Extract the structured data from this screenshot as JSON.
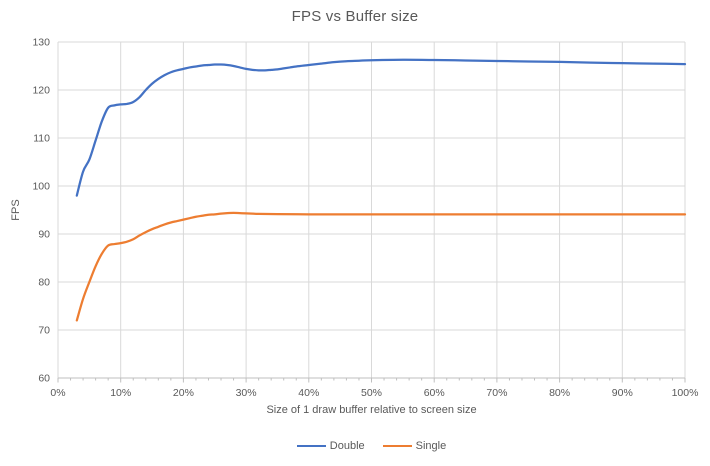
{
  "title": "FPS vs Buffer size",
  "colors": {
    "series_double": "#4472C4",
    "series_single": "#ED7D31",
    "text": "#595959",
    "gridline": "#D9D9D9",
    "axis_line": "#BFBFBF",
    "background": "#FFFFFF"
  },
  "chart_data": {
    "type": "line",
    "title": "FPS vs Buffer size",
    "xlabel": "Size of 1 draw buffer relative to screen size",
    "ylabel": "FPS",
    "xlim": [
      0,
      100
    ],
    "ylim": [
      60,
      130
    ],
    "x_ticks": [
      "0%",
      "10%",
      "20%",
      "30%",
      "40%",
      "50%",
      "60%",
      "70%",
      "80%",
      "90%",
      "100%"
    ],
    "x_tick_values": [
      0,
      10,
      20,
      30,
      40,
      50,
      60,
      70,
      80,
      90,
      100
    ],
    "x_minor_tick_step": 2,
    "y_ticks": [
      60,
      70,
      80,
      90,
      100,
      110,
      120,
      130
    ],
    "grid": true,
    "legend_position": "bottom",
    "series": [
      {
        "name": "Double",
        "color": "#4472C4",
        "points": [
          [
            3,
            98
          ],
          [
            4,
            103
          ],
          [
            5,
            105.5
          ],
          [
            6,
            109.5
          ],
          [
            7,
            113.5
          ],
          [
            8,
            116.3
          ],
          [
            9,
            116.8
          ],
          [
            10,
            117
          ],
          [
            11,
            117.1
          ],
          [
            12,
            117.5
          ],
          [
            13,
            118.5
          ],
          [
            14,
            120
          ],
          [
            15,
            121.3
          ],
          [
            16,
            122.3
          ],
          [
            17,
            123.1
          ],
          [
            18,
            123.7
          ],
          [
            19,
            124.1
          ],
          [
            20,
            124.4
          ],
          [
            21,
            124.7
          ],
          [
            22,
            124.9
          ],
          [
            23,
            125.1
          ],
          [
            24,
            125.2
          ],
          [
            25,
            125.3
          ],
          [
            26,
            125.3
          ],
          [
            27,
            125.2
          ],
          [
            28,
            125
          ],
          [
            29,
            124.7
          ],
          [
            30,
            124.4
          ],
          [
            31,
            124.2
          ],
          [
            32,
            124.1
          ],
          [
            33,
            124.1
          ],
          [
            34,
            124.2
          ],
          [
            35,
            124.3
          ],
          [
            36,
            124.5
          ],
          [
            37,
            124.7
          ],
          [
            38,
            124.9
          ],
          [
            40,
            125.2
          ],
          [
            42,
            125.5
          ],
          [
            44,
            125.8
          ],
          [
            46,
            126
          ],
          [
            48,
            126.1
          ],
          [
            50,
            126.2
          ],
          [
            55,
            126.3
          ],
          [
            60,
            126.25
          ],
          [
            65,
            126.15
          ],
          [
            70,
            126.05
          ],
          [
            75,
            125.95
          ],
          [
            80,
            125.85
          ],
          [
            85,
            125.7
          ],
          [
            90,
            125.6
          ],
          [
            95,
            125.5
          ],
          [
            100,
            125.4
          ]
        ]
      },
      {
        "name": "Single",
        "color": "#ED7D31",
        "points": [
          [
            3,
            72
          ],
          [
            4,
            76.5
          ],
          [
            5,
            80
          ],
          [
            6,
            83.3
          ],
          [
            7,
            85.9
          ],
          [
            8,
            87.6
          ],
          [
            9,
            87.9
          ],
          [
            10,
            88.1
          ],
          [
            11,
            88.4
          ],
          [
            12,
            88.9
          ],
          [
            13,
            89.7
          ],
          [
            14,
            90.4
          ],
          [
            15,
            91
          ],
          [
            16,
            91.5
          ],
          [
            17,
            92
          ],
          [
            18,
            92.4
          ],
          [
            19,
            92.7
          ],
          [
            20,
            93
          ],
          [
            21,
            93.3
          ],
          [
            22,
            93.6
          ],
          [
            23,
            93.8
          ],
          [
            24,
            94
          ],
          [
            25,
            94.1
          ],
          [
            26,
            94.25
          ],
          [
            27,
            94.35
          ],
          [
            28,
            94.4
          ],
          [
            29,
            94.35
          ],
          [
            30,
            94.3
          ],
          [
            32,
            94.2
          ],
          [
            35,
            94.15
          ],
          [
            40,
            94.1
          ],
          [
            45,
            94.1
          ],
          [
            50,
            94.1
          ],
          [
            55,
            94.1
          ],
          [
            60,
            94.1
          ],
          [
            65,
            94.1
          ],
          [
            70,
            94.1
          ],
          [
            75,
            94.1
          ],
          [
            80,
            94.1
          ],
          [
            85,
            94.1
          ],
          [
            90,
            94.1
          ],
          [
            95,
            94.1
          ],
          [
            100,
            94.1
          ]
        ]
      }
    ]
  }
}
